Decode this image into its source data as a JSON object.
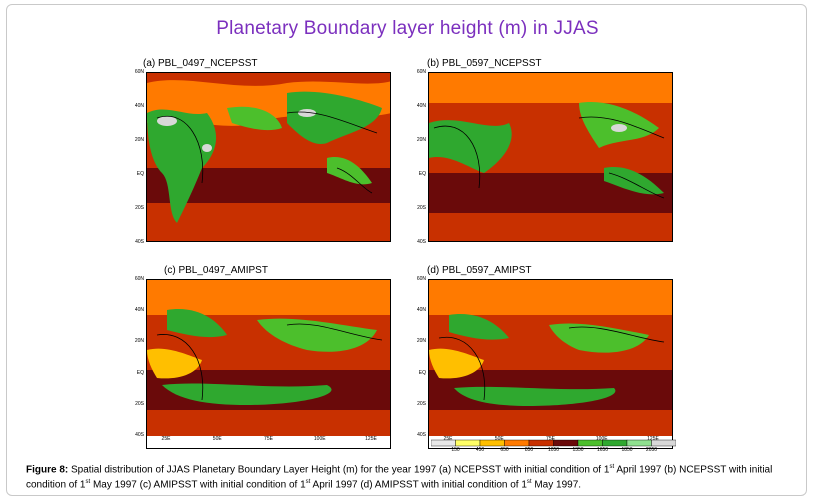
{
  "title": "Planetary Boundary layer height (m) in JJAS",
  "panels": [
    {
      "label": "(a)  PBL_0497_NCEPSST"
    },
    {
      "label": "(b) PBL_0597_NCEPSST"
    },
    {
      "label": "(c) PBL_0497_AMIPST"
    },
    {
      "label": "(d) PBL_0597_AMIPST"
    }
  ],
  "lat_ticks": [
    "60N",
    "40N",
    "20N",
    "EQ",
    "20S",
    "40S"
  ],
  "lon_ticks": [
    "25E",
    "50E",
    "75E",
    "100E",
    "125E"
  ],
  "colorbar": {
    "values": [
      "150",
      "450",
      "650",
      "850",
      "1050",
      "1350",
      "1650",
      "1850",
      "2050"
    ],
    "colors": [
      "#e8e8e8",
      "#ffff66",
      "#ffbf00",
      "#ff7a00",
      "#c83000",
      "#6a0a0a",
      "#4cbf2c",
      "#2fa82f",
      "#8fe08f",
      "#d8d8d8"
    ]
  },
  "caption": {
    "prefix": "Figure 8:",
    "text_1": " Spatial distribution of  JJAS Planetary Boundary Layer Height (m) for the year 1997 (a) NCEPSST with initial condition of 1",
    "sup_1": "st",
    "text_2": " April 1997 (b) NCEPSST with initial condition of 1",
    "sup_2": "st",
    "text_3": " May 1997 (c) AMIPSST with initial condition of 1",
    "sup_3": "st",
    "text_4": " April 1997 (d) AMIPSST with initial condition of 1",
    "sup_4": "st",
    "text_5": " May 1997."
  }
}
